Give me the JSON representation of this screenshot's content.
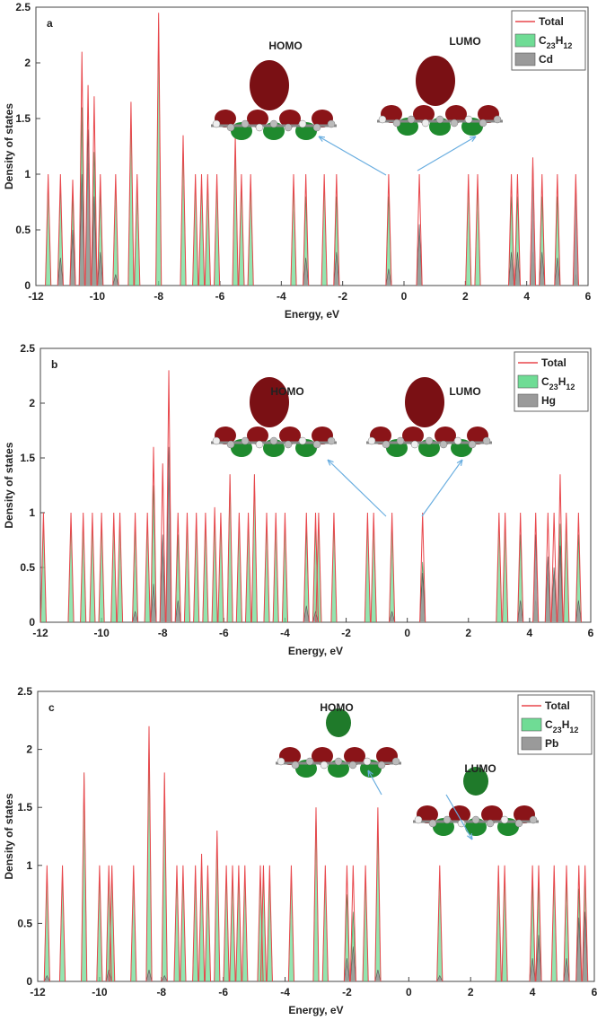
{
  "chart_data": [
    {
      "type": "spectrum",
      "panel_label": "a",
      "x_label": "Energy, eV",
      "y_label": "Density of states",
      "annotations": [
        "HOMO",
        "LUMO"
      ],
      "xlim": [
        -12,
        6
      ],
      "xticks": [
        -12,
        -10,
        -8,
        -6,
        -4,
        -2,
        0,
        2,
        4,
        6
      ],
      "ylim": [
        0,
        2.5
      ],
      "yticks": [
        0,
        0.5,
        1,
        1.5,
        2,
        2.5
      ],
      "legend": "upper right",
      "x": [
        -11.6,
        -11.2,
        -10.8,
        -10.5,
        -10.3,
        -10.1,
        -9.9,
        -9.4,
        -8.9,
        -8.7,
        -8.0,
        -7.2,
        -6.8,
        -6.6,
        -6.4,
        -6.1,
        -5.5,
        -5.3,
        -5.0,
        -3.6,
        -3.2,
        -2.6,
        -2.2,
        -0.5,
        0.5,
        2.1,
        2.4,
        3.5,
        3.7,
        4.2,
        4.5,
        5.0,
        5.6
      ],
      "series": [
        {
          "name": "Total",
          "color": "#e8474c",
          "values": [
            1.0,
            1.0,
            0.95,
            2.1,
            1.8,
            1.7,
            1.0,
            1.0,
            1.65,
            1.0,
            2.45,
            1.35,
            1.0,
            1.0,
            1.0,
            1.0,
            1.35,
            1.0,
            1.0,
            1.0,
            1.0,
            1.0,
            1.0,
            1.0,
            1.0,
            1.0,
            1.0,
            1.0,
            1.0,
            1.15,
            1.0,
            1.0,
            1.0
          ]
        },
        {
          "name": "C23H12",
          "color": "#6fdc95",
          "values": [
            0.95,
            0.9,
            0.8,
            1.6,
            1.1,
            1.2,
            0.85,
            0.95,
            1.6,
            0.95,
            2.4,
            1.3,
            0.95,
            0.95,
            0.95,
            0.95,
            1.3,
            0.95,
            0.95,
            0.95,
            0.8,
            0.95,
            0.8,
            0.8,
            0.45,
            0.95,
            0.95,
            0.8,
            0.8,
            0.3,
            0.8,
            0.8,
            0.1
          ]
        },
        {
          "name": "Cd",
          "color": "#9a9a9a",
          "values": [
            0,
            0.25,
            0.5,
            1.0,
            1.4,
            0.8,
            0.3,
            0.1,
            0,
            0,
            0,
            0,
            0,
            0,
            0,
            0,
            0,
            0,
            0,
            0,
            0.25,
            0,
            0.3,
            0.15,
            0.55,
            0,
            0,
            0.3,
            0.3,
            1.15,
            0.3,
            0.25,
            0.95
          ]
        }
      ]
    },
    {
      "type": "spectrum",
      "panel_label": "b",
      "x_label": "Energy, eV",
      "y_label": "Density of states",
      "annotations": [
        "HOMO",
        "LUMO"
      ],
      "xlim": [
        -12,
        6
      ],
      "xticks": [
        -12,
        -10,
        -8,
        -6,
        -4,
        -2,
        0,
        2,
        4,
        6
      ],
      "ylim": [
        0,
        2.5
      ],
      "yticks": [
        0,
        0.5,
        1,
        1.5,
        2,
        2.5
      ],
      "legend": "upper right",
      "x": [
        -11.9,
        -11.0,
        -10.6,
        -10.3,
        -10.0,
        -9.6,
        -9.4,
        -8.9,
        -8.5,
        -8.3,
        -8.0,
        -7.8,
        -7.5,
        -7.2,
        -6.9,
        -6.6,
        -6.3,
        -6.1,
        -5.8,
        -5.5,
        -5.2,
        -5.0,
        -4.6,
        -4.3,
        -4.0,
        -3.3,
        -3.0,
        -2.9,
        -2.4,
        -1.3,
        -1.1,
        -0.5,
        0.5,
        3.0,
        3.2,
        3.7,
        4.2,
        4.6,
        4.8,
        5.0,
        5.2,
        5.6
      ],
      "series": [
        {
          "name": "Total",
          "color": "#e8474c",
          "values": [
            1.0,
            1.0,
            1.0,
            1.0,
            1.0,
            1.0,
            1.0,
            1.0,
            1.0,
            1.6,
            1.45,
            2.3,
            1.0,
            1.0,
            1.0,
            1.0,
            1.05,
            1.0,
            1.35,
            1.0,
            1.0,
            1.35,
            1.0,
            1.0,
            1.0,
            1.0,
            1.0,
            1.0,
            1.0,
            1.0,
            1.0,
            1.0,
            1.0,
            1.0,
            1.0,
            1.0,
            1.0,
            1.0,
            1.0,
            1.35,
            1.0,
            1.0
          ]
        },
        {
          "name": "C23H12",
          "color": "#6fdc95",
          "values": [
            0.95,
            0.95,
            0.95,
            0.95,
            0.95,
            0.95,
            0.95,
            0.9,
            0.95,
            1.25,
            0.6,
            0.9,
            0.8,
            0.95,
            0.95,
            0.95,
            1.0,
            0.95,
            1.35,
            0.95,
            0.95,
            1.35,
            0.95,
            0.95,
            0.95,
            0.85,
            0.9,
            0.95,
            0.95,
            0.95,
            0.95,
            0.9,
            0.55,
            0.95,
            0.95,
            0.8,
            0.2,
            0.4,
            0.5,
            0.9,
            0.95,
            0.8
          ]
        },
        {
          "name": "Hg",
          "color": "#9a9a9a",
          "values": [
            0,
            0,
            0,
            0,
            0,
            0,
            0,
            0.1,
            0,
            0.35,
            0.8,
            1.6,
            0.2,
            0,
            0,
            0,
            0,
            0,
            0,
            0,
            0,
            0,
            0,
            0,
            0,
            0.15,
            0.1,
            0,
            0,
            0,
            0,
            0.1,
            0.45,
            0,
            0,
            0.2,
            0.8,
            0.6,
            0.5,
            0.7,
            0,
            0.2
          ]
        }
      ]
    },
    {
      "type": "spectrum",
      "panel_label": "c",
      "x_label": "Energy, eV",
      "y_label": "Density of states",
      "annotations": [
        "HOMO",
        "LUMO"
      ],
      "xlim": [
        -12,
        6
      ],
      "xticks": [
        -12,
        -10,
        -8,
        -6,
        -4,
        -2,
        0,
        2,
        4,
        6
      ],
      "ylim": [
        0,
        2.5
      ],
      "yticks": [
        0,
        0.5,
        1,
        1.5,
        2,
        2.5
      ],
      "legend": "upper right",
      "x": [
        -11.7,
        -11.2,
        -10.5,
        -10.0,
        -9.7,
        -9.6,
        -8.9,
        -8.4,
        -7.9,
        -7.5,
        -7.3,
        -6.9,
        -6.7,
        -6.5,
        -6.2,
        -5.9,
        -5.7,
        -5.5,
        -5.3,
        -4.8,
        -4.7,
        -4.5,
        -3.8,
        -3.0,
        -2.7,
        -2.0,
        -1.8,
        -1.4,
        -1.0,
        1.0,
        2.9,
        3.1,
        4.0,
        4.2,
        4.7,
        5.1,
        5.5,
        5.7
      ],
      "series": [
        {
          "name": "Total",
          "color": "#e8474c",
          "values": [
            1.0,
            1.0,
            1.8,
            1.0,
            1.0,
            1.0,
            1.0,
            2.2,
            1.8,
            1.0,
            1.0,
            1.0,
            1.1,
            1.0,
            1.3,
            1.0,
            1.0,
            1.0,
            1.0,
            1.0,
            1.0,
            1.0,
            1.0,
            1.5,
            1.0,
            1.0,
            1.0,
            1.0,
            1.5,
            1.0,
            1.0,
            1.0,
            1.0,
            1.0,
            1.0,
            1.0,
            1.0,
            1.0
          ]
        },
        {
          "name": "C23H12",
          "color": "#6fdc95",
          "values": [
            0.95,
            0.95,
            1.8,
            0.95,
            0.95,
            0.95,
            0.95,
            2.15,
            1.75,
            0.95,
            0.95,
            0.95,
            1.05,
            0.95,
            1.25,
            0.95,
            0.95,
            0.95,
            0.95,
            0.95,
            0.95,
            0.95,
            0.95,
            1.5,
            0.95,
            0.75,
            0.6,
            0.95,
            1.4,
            0.95,
            0.95,
            0.95,
            0.85,
            0.85,
            0.95,
            0.9,
            0.8,
            0.9
          ]
        },
        {
          "name": "Pb",
          "color": "#9a9a9a",
          "values": [
            0.05,
            0,
            0,
            0,
            0.1,
            0,
            0,
            0.1,
            0.05,
            0,
            0,
            0,
            0,
            0,
            0,
            0,
            0,
            0,
            0,
            0,
            0,
            0,
            0,
            0,
            0,
            0.2,
            0.3,
            0,
            0.1,
            0.05,
            0,
            0,
            0.2,
            0.4,
            0,
            0.2,
            0.55,
            0.6
          ]
        }
      ]
    }
  ]
}
